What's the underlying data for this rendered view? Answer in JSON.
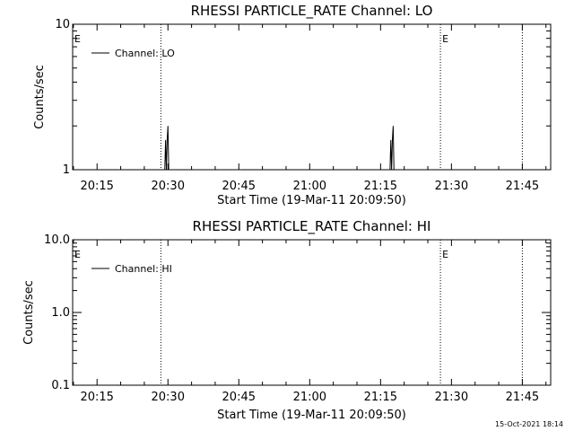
{
  "timestamp": "15-Oct-2021 18:14",
  "chart_data": [
    {
      "type": "line",
      "title": "RHESSI PARTICLE_RATE Channel: LO",
      "xlabel": "Start Time (19-Mar-11 20:09:50)",
      "ylabel": "Counts/sec",
      "y_scale": "log",
      "ylim": [
        1,
        10
      ],
      "xlim": [
        "20:09:50",
        "21:51:00"
      ],
      "x_ticks": [
        "20:15",
        "20:30",
        "20:45",
        "21:00",
        "21:15",
        "21:30",
        "21:45"
      ],
      "y_ticks": [
        "1",
        "10"
      ],
      "grid": false,
      "legend": {
        "position": "top-left",
        "entries": [
          "Channel: LO"
        ]
      },
      "event_markers": [
        {
          "time": "20:28:30",
          "label": "E"
        },
        {
          "time": "21:27:40",
          "label": ""
        },
        {
          "time": "21:45:00",
          "label": ""
        }
      ],
      "event_labels": [
        {
          "time": "20:09:50",
          "label": "E"
        },
        {
          "time": "21:27:40",
          "label": "E"
        }
      ],
      "series": [
        {
          "name": "Channel: LO",
          "points": [
            [
              "20:29:20",
              1
            ],
            [
              "20:29:30",
              1.6
            ],
            [
              "20:29:40",
              1
            ],
            [
              "20:29:50",
              1.6
            ],
            [
              "20:30:00",
              2
            ],
            [
              "20:30:10",
              1
            ],
            [
              "21:17:00",
              1
            ],
            [
              "21:17:10",
              1.6
            ],
            [
              "21:17:20",
              1
            ],
            [
              "21:17:30",
              1.6
            ],
            [
              "21:17:40",
              2
            ],
            [
              "21:17:50",
              1
            ]
          ]
        }
      ]
    },
    {
      "type": "line",
      "title": "RHESSI PARTICLE_RATE Channel: HI",
      "xlabel": "Start Time (19-Mar-11 20:09:50)",
      "ylabel": "Counts/sec",
      "y_scale": "log",
      "ylim": [
        0.1,
        10
      ],
      "xlim": [
        "20:09:50",
        "21:51:00"
      ],
      "x_ticks": [
        "20:15",
        "20:30",
        "20:45",
        "21:00",
        "21:15",
        "21:30",
        "21:45"
      ],
      "y_ticks": [
        "0.1",
        "1.0",
        "10.0"
      ],
      "grid": false,
      "legend": {
        "position": "top-left",
        "entries": [
          "Channel: HI"
        ]
      },
      "event_markers": [
        {
          "time": "20:28:30",
          "label": ""
        },
        {
          "time": "21:27:40",
          "label": ""
        },
        {
          "time": "21:45:00",
          "label": ""
        }
      ],
      "event_labels": [
        {
          "time": "20:09:50",
          "label": "E"
        },
        {
          "time": "21:27:40",
          "label": "E"
        }
      ],
      "series": [
        {
          "name": "Channel: HI",
          "points": []
        }
      ]
    }
  ]
}
